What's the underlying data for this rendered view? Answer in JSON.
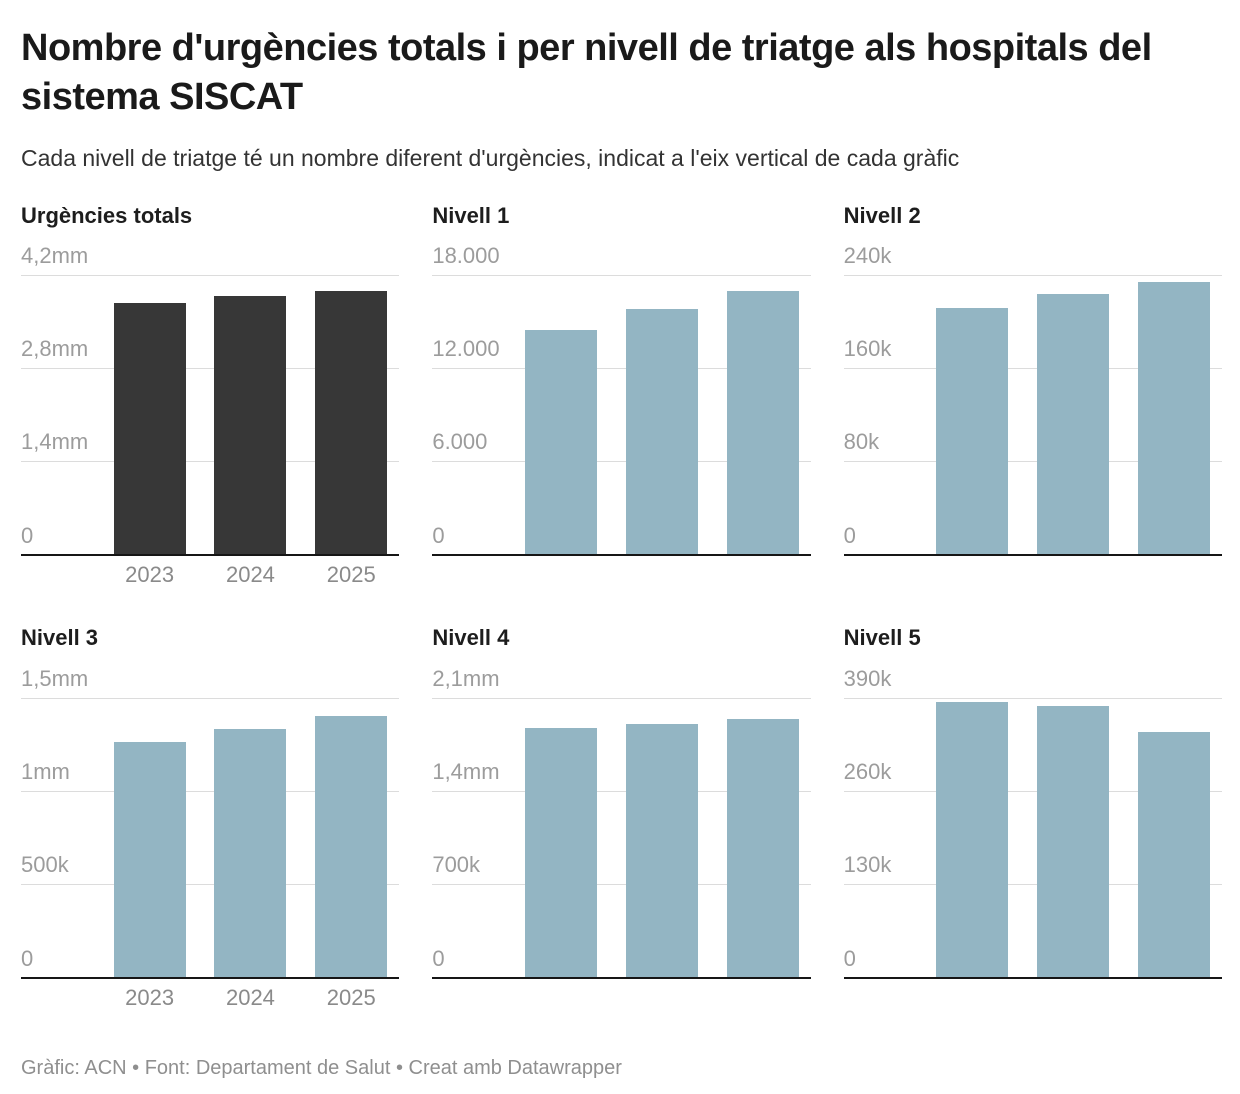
{
  "header": {
    "title": "Nombre d'urgències totals i per nivell de triatge als hospitals del sistema SISCAT",
    "subtitle": "Cada nivell de triatge té un nombre diferent d'urgències, indicat a l'eix vertical de cada gràfic"
  },
  "footer": {
    "text": "Gràfic: ACN • Font: Departament de Salut • Creat amb Datawrapper"
  },
  "colors": {
    "bar_total": "#373737",
    "bar_level": "#93b5c3",
    "gridline": "#dcdcdc",
    "axis_line": "#161616",
    "tick_label": "#9c9c9c",
    "x_label": "#8a8a8a"
  },
  "chart_data": [
    {
      "type": "bar",
      "title": "Urgències totals",
      "categories": [
        "2023",
        "2024",
        "2025"
      ],
      "values": [
        3780000,
        3890000,
        3960000
      ],
      "ylim": [
        0,
        4200000
      ],
      "yticks": [
        "4,2mm",
        "2,8mm",
        "1,4mm",
        "0"
      ],
      "color": "#373737",
      "x_labels_visible": true,
      "grid": true,
      "legend": "none"
    },
    {
      "type": "bar",
      "title": "Nivell 1",
      "categories": [
        "2023",
        "2024",
        "2025"
      ],
      "values": [
        14450,
        15800,
        16950
      ],
      "ylim": [
        0,
        18000
      ],
      "yticks": [
        "18.000",
        "12.000",
        "6.000",
        "0"
      ],
      "color": "#93b5c3",
      "x_labels_visible": false,
      "grid": true,
      "legend": "none"
    },
    {
      "type": "bar",
      "title": "Nivell 2",
      "categories": [
        "2023",
        "2024",
        "2025"
      ],
      "values": [
        212000,
        224000,
        234000
      ],
      "ylim": [
        0,
        240000
      ],
      "yticks": [
        "240k",
        "160k",
        "80k",
        "0"
      ],
      "color": "#93b5c3",
      "x_labels_visible": false,
      "grid": true,
      "legend": "none"
    },
    {
      "type": "bar",
      "title": "Nivell 3",
      "categories": [
        "2023",
        "2024",
        "2025"
      ],
      "values": [
        1265000,
        1335000,
        1405000
      ],
      "ylim": [
        0,
        1500000
      ],
      "yticks": [
        "1,5mm",
        "1mm",
        "500k",
        "0"
      ],
      "color": "#93b5c3",
      "x_labels_visible": true,
      "grid": true,
      "legend": "none"
    },
    {
      "type": "bar",
      "title": "Nivell 4",
      "categories": [
        "2023",
        "2024",
        "2025"
      ],
      "values": [
        1875000,
        1905000,
        1940000
      ],
      "ylim": [
        0,
        2100000
      ],
      "yticks": [
        "2,1mm",
        "1,4mm",
        "700k",
        "0"
      ],
      "color": "#93b5c3",
      "x_labels_visible": false,
      "grid": true,
      "legend": "none"
    },
    {
      "type": "bar",
      "title": "Nivell 5",
      "categories": [
        "2023",
        "2024",
        "2025"
      ],
      "values": [
        385000,
        379000,
        343000
      ],
      "ylim": [
        0,
        390000
      ],
      "yticks": [
        "390k",
        "260k",
        "130k",
        "0"
      ],
      "color": "#93b5c3",
      "x_labels_visible": false,
      "grid": true,
      "legend": "none"
    }
  ]
}
